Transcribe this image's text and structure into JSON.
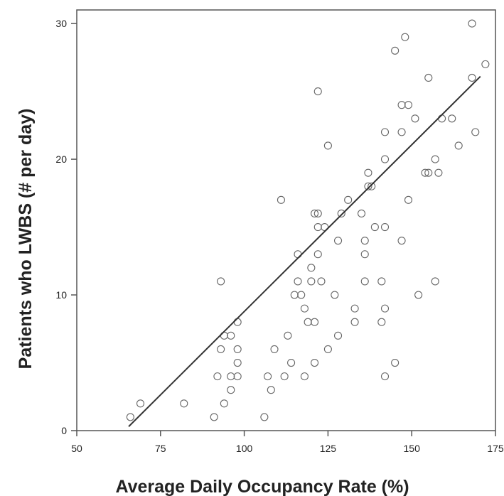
{
  "chart_data": {
    "type": "scatter",
    "xlabel": "Average Daily Occupancy Rate (%)",
    "ylabel": "Patients who LWBS (# per day)",
    "xlim": [
      50,
      175
    ],
    "ylim": [
      0,
      31
    ],
    "xticks": [
      "50",
      "75",
      "100",
      "125",
      "150",
      "175"
    ],
    "yticks": [
      "0",
      "10",
      "20",
      "30"
    ],
    "grid": false,
    "legend": "none",
    "points": [
      [
        66,
        1
      ],
      [
        69,
        2
      ],
      [
        82,
        2
      ],
      [
        91,
        1
      ],
      [
        92,
        4
      ],
      [
        93,
        11
      ],
      [
        93,
        6
      ],
      [
        94,
        7
      ],
      [
        94,
        2
      ],
      [
        96,
        3
      ],
      [
        96,
        4
      ],
      [
        96,
        7
      ],
      [
        98,
        8
      ],
      [
        98,
        4
      ],
      [
        98,
        5
      ],
      [
        98,
        6
      ],
      [
        106,
        1
      ],
      [
        107,
        4
      ],
      [
        108,
        3
      ],
      [
        109,
        6
      ],
      [
        111,
        17
      ],
      [
        112,
        4
      ],
      [
        113,
        7
      ],
      [
        114,
        5
      ],
      [
        115,
        10
      ],
      [
        116,
        13
      ],
      [
        116,
        11
      ],
      [
        117,
        10
      ],
      [
        118,
        9
      ],
      [
        118,
        4
      ],
      [
        119,
        8
      ],
      [
        120,
        11
      ],
      [
        120,
        12
      ],
      [
        121,
        8
      ],
      [
        121,
        16
      ],
      [
        121,
        5
      ],
      [
        122,
        25
      ],
      [
        122,
        15
      ],
      [
        122,
        13
      ],
      [
        122,
        16
      ],
      [
        123,
        11
      ],
      [
        124,
        15
      ],
      [
        125,
        6
      ],
      [
        125,
        21
      ],
      [
        127,
        10
      ],
      [
        128,
        14
      ],
      [
        128,
        7
      ],
      [
        129,
        16
      ],
      [
        131,
        17
      ],
      [
        133,
        9
      ],
      [
        133,
        8
      ],
      [
        135,
        16
      ],
      [
        136,
        13
      ],
      [
        136,
        11
      ],
      [
        136,
        14
      ],
      [
        137,
        19
      ],
      [
        137,
        18
      ],
      [
        138,
        18
      ],
      [
        139,
        15
      ],
      [
        141,
        11
      ],
      [
        141,
        8
      ],
      [
        142,
        22
      ],
      [
        142,
        15
      ],
      [
        142,
        9
      ],
      [
        142,
        20
      ],
      [
        142,
        4
      ],
      [
        145,
        28
      ],
      [
        145,
        5
      ],
      [
        147,
        14
      ],
      [
        147,
        22
      ],
      [
        147,
        24
      ],
      [
        148,
        29
      ],
      [
        149,
        24
      ],
      [
        149,
        17
      ],
      [
        151,
        23
      ],
      [
        152,
        10
      ],
      [
        154,
        19
      ],
      [
        155,
        26
      ],
      [
        155,
        19
      ],
      [
        157,
        11
      ],
      [
        157,
        20
      ],
      [
        158,
        19
      ],
      [
        159,
        23
      ],
      [
        162,
        23
      ],
      [
        164,
        21
      ],
      [
        168,
        30
      ],
      [
        168,
        26
      ],
      [
        169,
        22
      ],
      [
        172,
        27
      ]
    ],
    "fit_line": {
      "x": [
        65.5,
        170.5
      ],
      "y": [
        0.3,
        26.1
      ]
    }
  }
}
